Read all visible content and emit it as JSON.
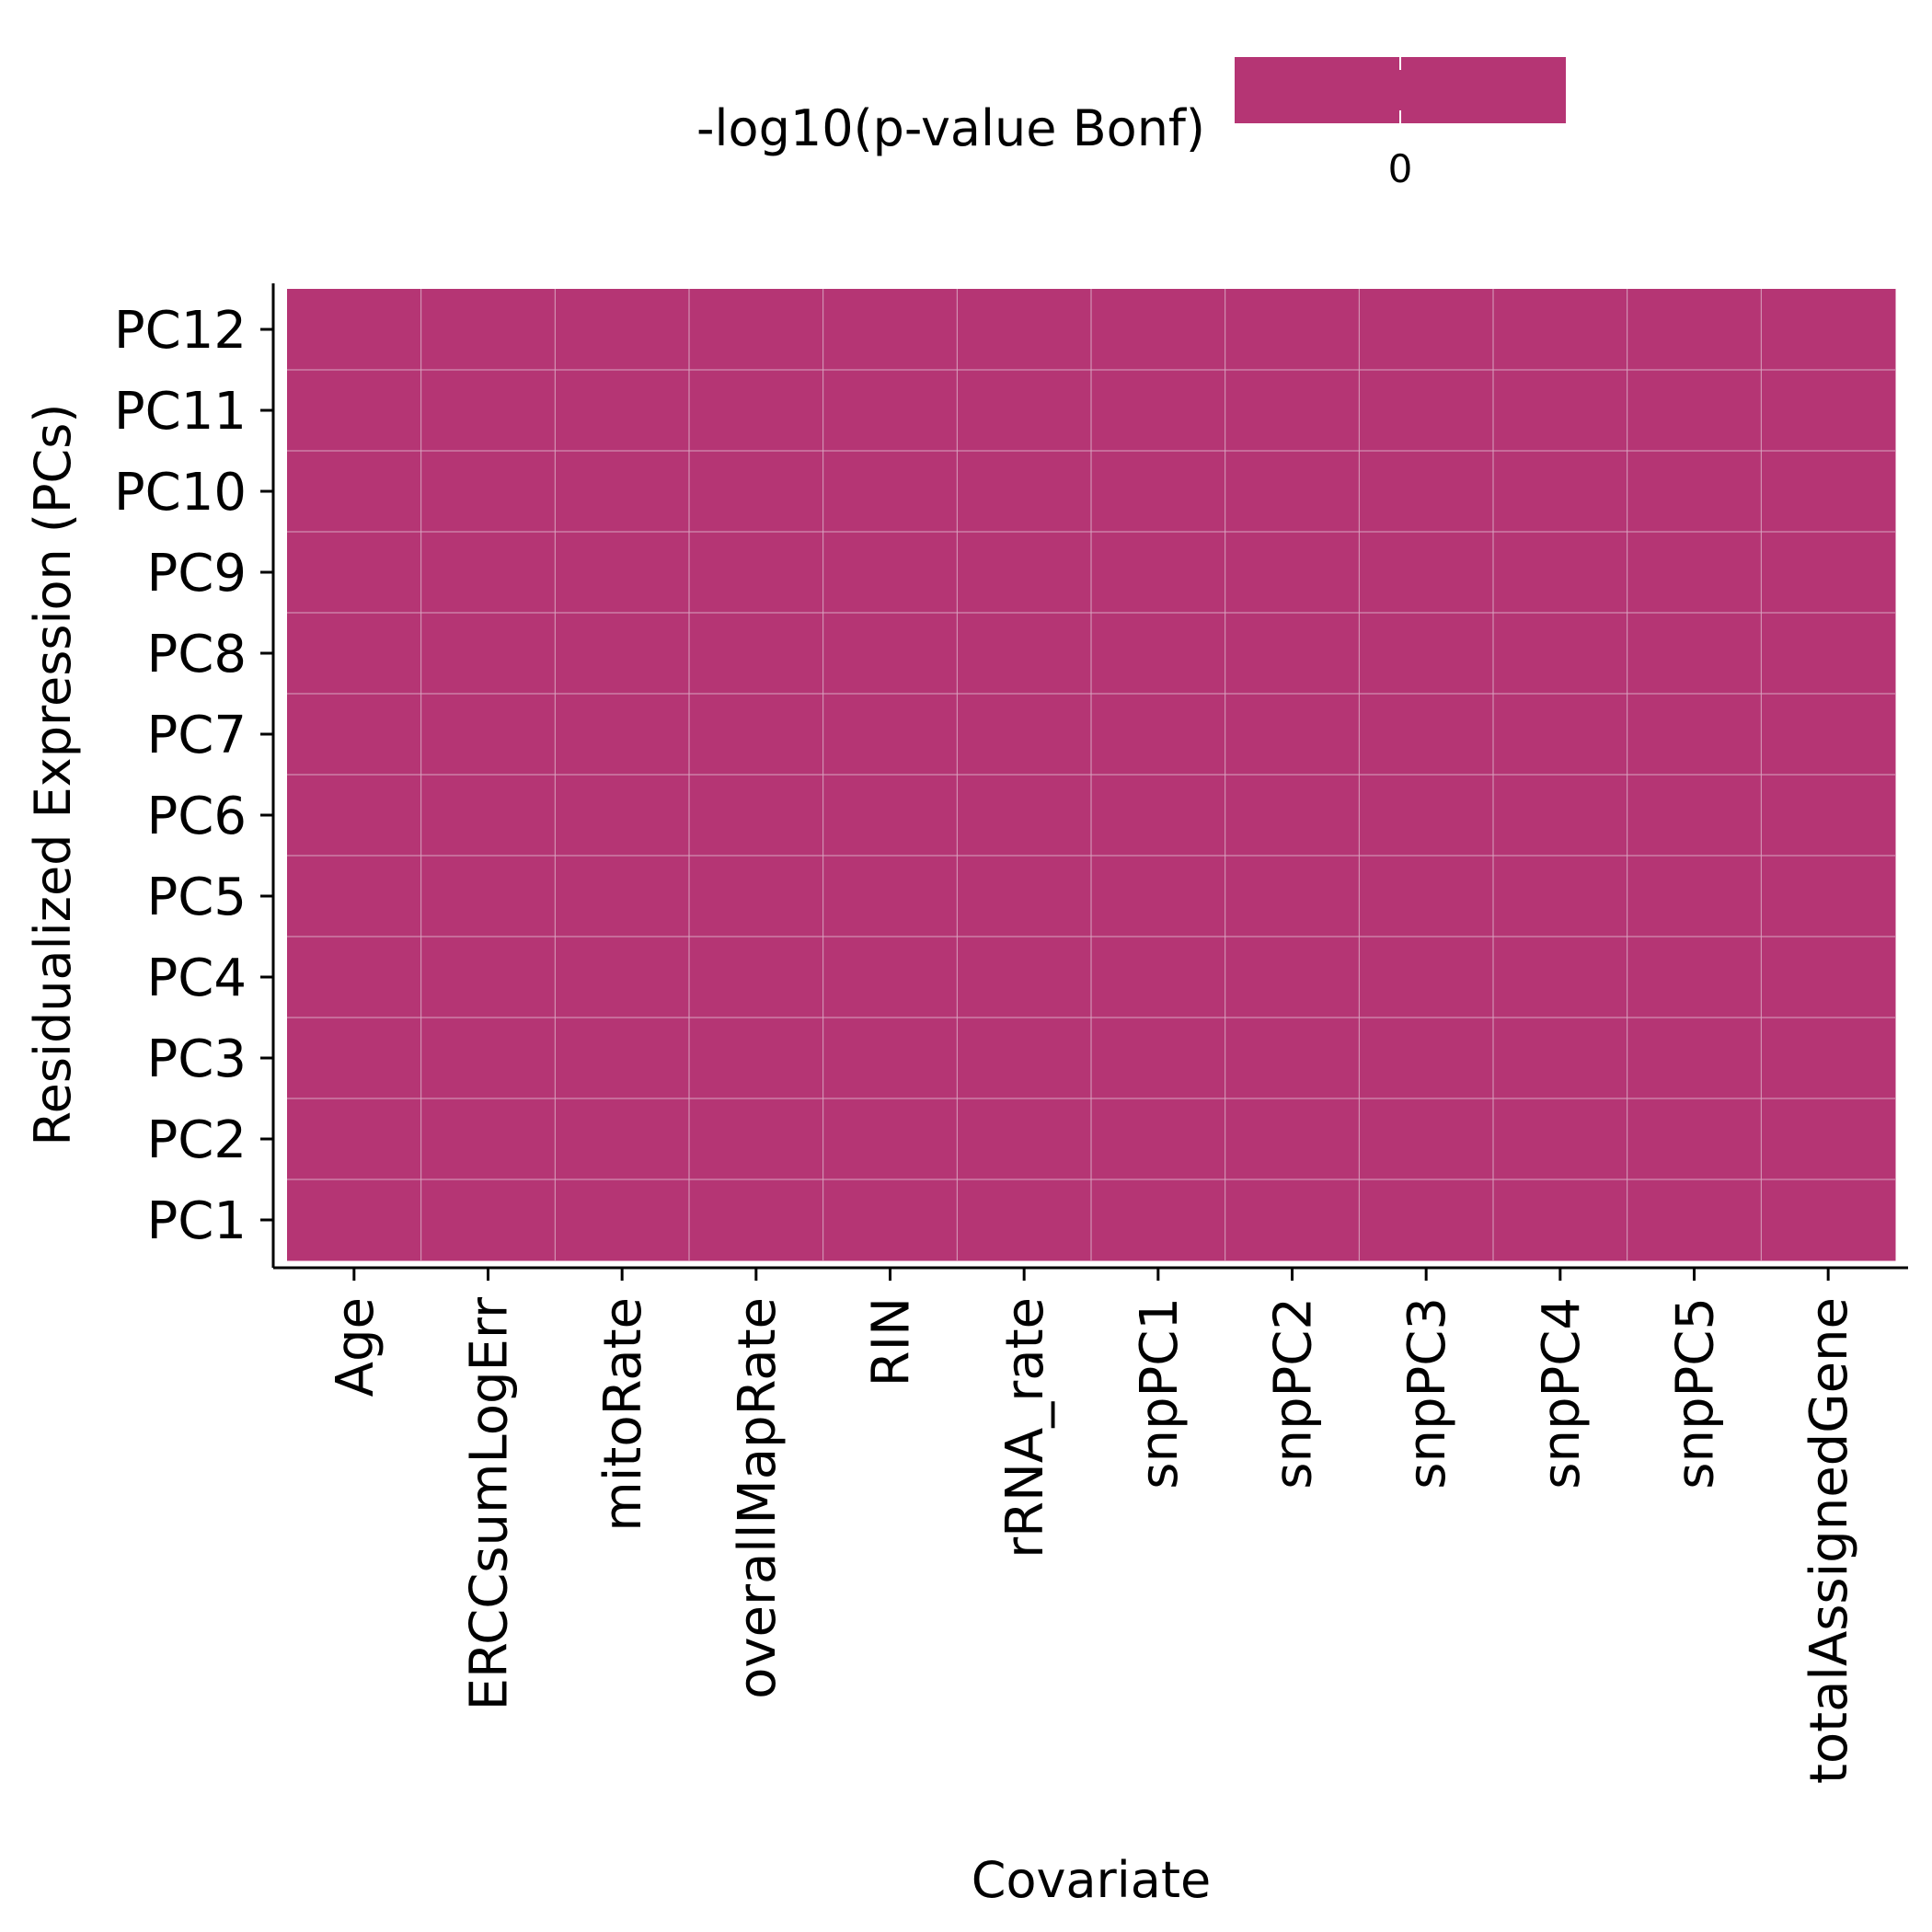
{
  "chart_data": {
    "type": "heatmap",
    "xlabel": "Covariate",
    "ylabel": "Residualized Expression (PCs)",
    "x": [
      "Age",
      "ERCCsumLogErr",
      "mitoRate",
      "overallMapRate",
      "RIN",
      "rRNA_rate",
      "snpPC1",
      "snpPC2",
      "snpPC3",
      "snpPC4",
      "snpPC5",
      "totalAssignedGene"
    ],
    "y": [
      "PC1",
      "PC2",
      "PC3",
      "PC4",
      "PC5",
      "PC6",
      "PC7",
      "PC8",
      "PC9",
      "PC10",
      "PC11",
      "PC12"
    ],
    "values": [
      [
        0,
        0,
        0,
        0,
        0,
        0,
        0,
        0,
        0,
        0,
        0,
        0
      ],
      [
        0,
        0,
        0,
        0,
        0,
        0,
        0,
        0,
        0,
        0,
        0,
        0
      ],
      [
        0,
        0,
        0,
        0,
        0,
        0,
        0,
        0,
        0,
        0,
        0,
        0
      ],
      [
        0,
        0,
        0,
        0,
        0,
        0,
        0,
        0,
        0,
        0,
        0,
        0
      ],
      [
        0,
        0,
        0,
        0,
        0,
        0,
        0,
        0,
        0,
        0,
        0,
        0
      ],
      [
        0,
        0,
        0,
        0,
        0,
        0,
        0,
        0,
        0,
        0,
        0,
        0
      ],
      [
        0,
        0,
        0,
        0,
        0,
        0,
        0,
        0,
        0,
        0,
        0,
        0
      ],
      [
        0,
        0,
        0,
        0,
        0,
        0,
        0,
        0,
        0,
        0,
        0,
        0
      ],
      [
        0,
        0,
        0,
        0,
        0,
        0,
        0,
        0,
        0,
        0,
        0,
        0
      ],
      [
        0,
        0,
        0,
        0,
        0,
        0,
        0,
        0,
        0,
        0,
        0,
        0
      ],
      [
        0,
        0,
        0,
        0,
        0,
        0,
        0,
        0,
        0,
        0,
        0,
        0
      ],
      [
        0,
        0,
        0,
        0,
        0,
        0,
        0,
        0,
        0,
        0,
        0,
        0
      ]
    ],
    "legend": {
      "title": "-log10(p-value Bonf)",
      "ticks": [
        "0"
      ],
      "placement": "top"
    },
    "colors": {
      "fill": "#b53574",
      "grid": "#d9a3bf",
      "axis": "#000000"
    },
    "grid": true
  }
}
